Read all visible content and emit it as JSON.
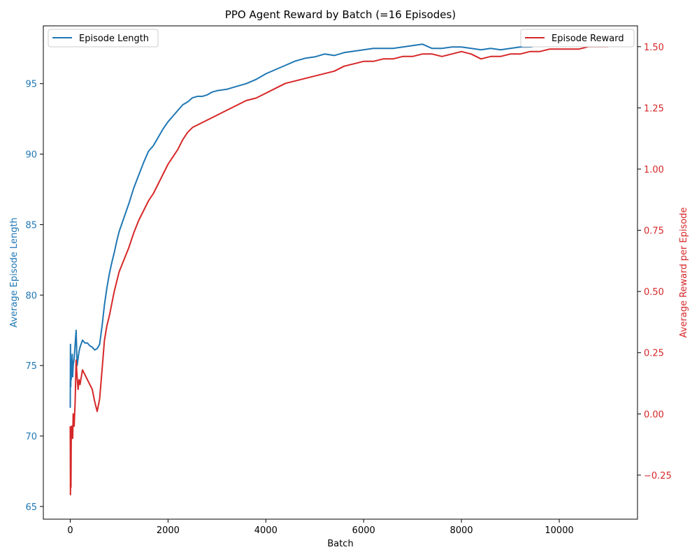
{
  "chart_data": {
    "type": "line",
    "title": "PPO Agent Reward by Batch (=16 Episodes)",
    "xlabel": "Batch",
    "ylabel_left": "Average Episode Length",
    "ylabel_right": "Average Reward per Episode",
    "xlim": [
      -550,
      11600
    ],
    "ylim_left": [
      64.1,
      99.1
    ],
    "ylim_right": [
      -0.43,
      1.585
    ],
    "x_ticks": [
      0,
      2000,
      4000,
      6000,
      8000,
      10000
    ],
    "x_tick_labels": [
      "0",
      "2000",
      "4000",
      "6000",
      "8000",
      "10000"
    ],
    "y_left_ticks": [
      65,
      70,
      75,
      80,
      85,
      90,
      95
    ],
    "y_left_tick_labels": [
      "65",
      "70",
      "75",
      "80",
      "85",
      "90",
      "95"
    ],
    "y_right_ticks": [
      -0.25,
      0.0,
      0.25,
      0.5,
      0.75,
      1.0,
      1.25,
      1.5
    ],
    "y_right_tick_labels": [
      "−0.25",
      "0.00",
      "0.25",
      "0.50",
      "0.75",
      "1.00",
      "1.25",
      "1.50"
    ],
    "grid": false,
    "colors": {
      "left": "#1f77b4",
      "right": "#d62728"
    },
    "series": [
      {
        "name": "Episode Length",
        "axis": "left",
        "legend": "upper-left",
        "x": [
          0,
          5,
          10,
          15,
          20,
          30,
          40,
          50,
          60,
          80,
          100,
          120,
          140,
          160,
          180,
          200,
          250,
          300,
          350,
          400,
          450,
          500,
          550,
          600,
          650,
          700,
          750,
          800,
          850,
          900,
          950,
          1000,
          1100,
          1200,
          1300,
          1400,
          1500,
          1600,
          1700,
          1800,
          1900,
          2000,
          2100,
          2200,
          2300,
          2400,
          2500,
          2600,
          2700,
          2800,
          2900,
          3000,
          3200,
          3400,
          3600,
          3800,
          4000,
          4200,
          4400,
          4600,
          4800,
          5000,
          5200,
          5400,
          5600,
          5800,
          6000,
          6200,
          6400,
          6600,
          6800,
          7000,
          7200,
          7400,
          7600,
          7800,
          8000,
          8200,
          8400,
          8600,
          8800,
          9000,
          9200,
          9400,
          9600,
          9800,
          10000,
          10200,
          10400,
          10600,
          10800,
          11000
        ],
        "y": [
          72.0,
          76.5,
          73.5,
          75.2,
          74.0,
          75.0,
          75.8,
          74.2,
          75.0,
          75.5,
          76.5,
          77.5,
          75.0,
          75.5,
          76.0,
          76.3,
          76.8,
          76.6,
          76.6,
          76.4,
          76.3,
          76.1,
          76.2,
          76.5,
          77.8,
          79.3,
          80.5,
          81.5,
          82.3,
          83.0,
          83.8,
          84.5,
          85.5,
          86.5,
          87.6,
          88.5,
          89.4,
          90.2,
          90.6,
          91.2,
          91.8,
          92.3,
          92.7,
          93.1,
          93.5,
          93.7,
          94.0,
          94.1,
          94.1,
          94.2,
          94.4,
          94.5,
          94.6,
          94.8,
          95.0,
          95.3,
          95.7,
          96.0,
          96.3,
          96.6,
          96.8,
          96.9,
          97.1,
          97.0,
          97.2,
          97.3,
          97.4,
          97.5,
          97.5,
          97.5,
          97.6,
          97.7,
          97.8,
          97.5,
          97.5,
          97.6,
          97.6,
          97.5,
          97.4,
          97.5,
          97.4,
          97.5,
          97.6,
          97.6,
          97.7,
          97.8,
          97.8,
          97.8,
          97.9,
          97.9,
          97.9,
          98.0
        ]
      },
      {
        "name": "Episode Reward",
        "axis": "right",
        "legend": "upper-right",
        "x": [
          0,
          5,
          10,
          15,
          20,
          30,
          40,
          50,
          60,
          80,
          100,
          120,
          140,
          160,
          180,
          200,
          250,
          300,
          350,
          400,
          450,
          500,
          550,
          600,
          650,
          700,
          750,
          800,
          850,
          900,
          950,
          1000,
          1100,
          1200,
          1300,
          1400,
          1500,
          1600,
          1700,
          1800,
          1900,
          2000,
          2100,
          2200,
          2300,
          2400,
          2500,
          2600,
          2700,
          2800,
          2900,
          3000,
          3200,
          3400,
          3600,
          3800,
          4000,
          4200,
          4400,
          4600,
          4800,
          5000,
          5200,
          5400,
          5600,
          5800,
          6000,
          6200,
          6400,
          6600,
          6800,
          7000,
          7200,
          7400,
          7600,
          7800,
          8000,
          8200,
          8400,
          8600,
          8800,
          9000,
          9200,
          9400,
          9600,
          9800,
          10000,
          10200,
          10400,
          10600,
          10800,
          11000
        ],
        "y": [
          -0.05,
          -0.33,
          -0.15,
          -0.3,
          -0.1,
          -0.05,
          -0.08,
          -0.1,
          0.0,
          -0.05,
          0.05,
          0.22,
          0.15,
          0.1,
          0.14,
          0.12,
          0.18,
          0.16,
          0.14,
          0.12,
          0.1,
          0.05,
          0.01,
          0.06,
          0.18,
          0.3,
          0.36,
          0.4,
          0.45,
          0.5,
          0.54,
          0.58,
          0.63,
          0.68,
          0.74,
          0.79,
          0.83,
          0.87,
          0.9,
          0.94,
          0.98,
          1.02,
          1.05,
          1.08,
          1.12,
          1.15,
          1.17,
          1.18,
          1.19,
          1.2,
          1.21,
          1.22,
          1.24,
          1.26,
          1.28,
          1.29,
          1.31,
          1.33,
          1.35,
          1.36,
          1.37,
          1.38,
          1.39,
          1.4,
          1.42,
          1.43,
          1.44,
          1.44,
          1.45,
          1.45,
          1.46,
          1.46,
          1.47,
          1.47,
          1.46,
          1.47,
          1.48,
          1.47,
          1.45,
          1.46,
          1.46,
          1.47,
          1.47,
          1.48,
          1.48,
          1.49,
          1.49,
          1.49,
          1.49,
          1.5,
          1.5,
          1.5
        ]
      }
    ]
  }
}
